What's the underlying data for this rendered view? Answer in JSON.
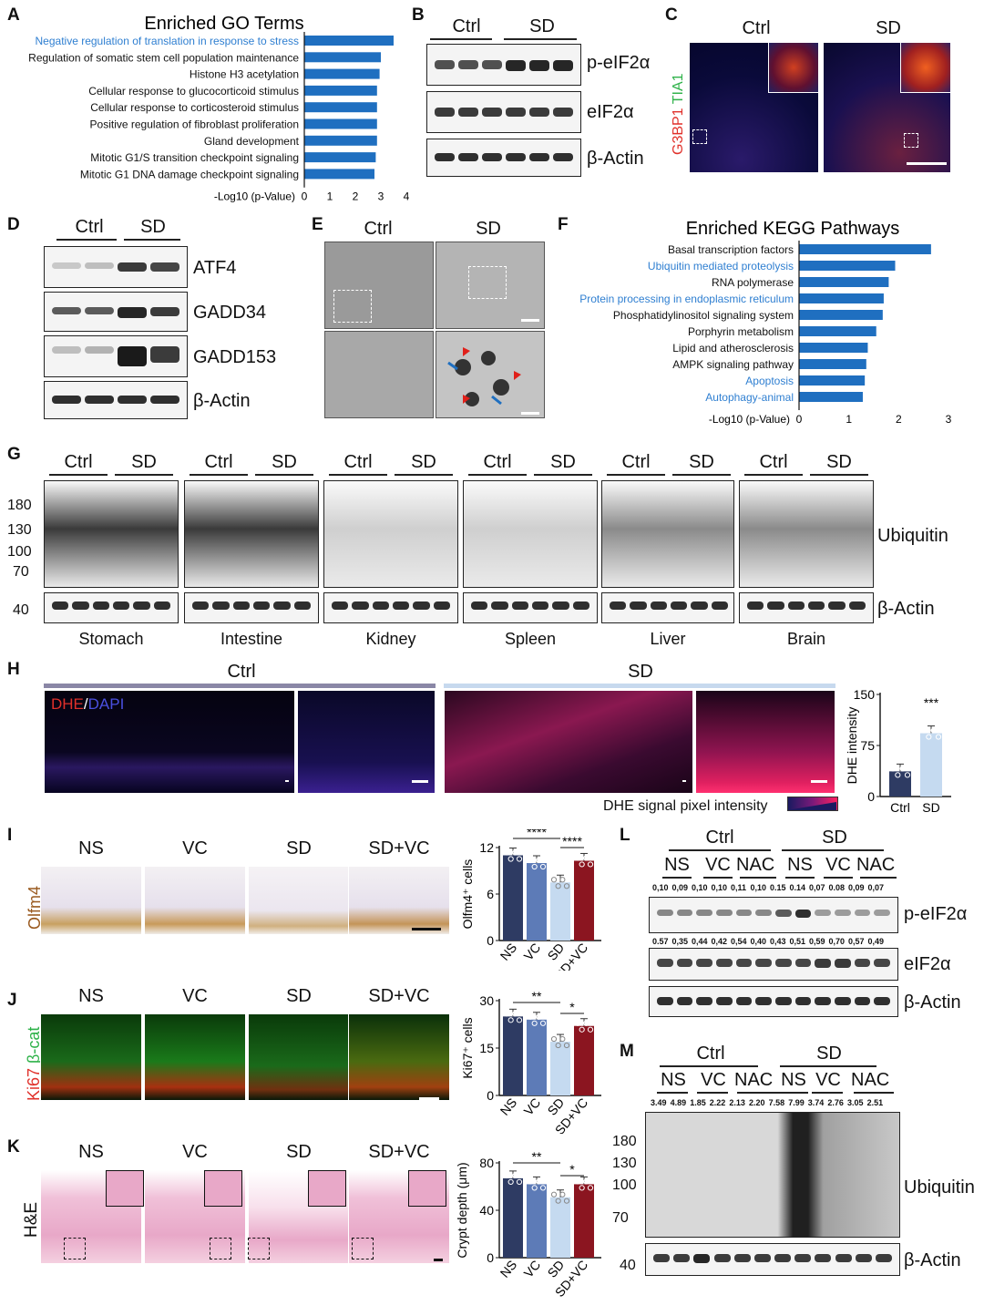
{
  "colors": {
    "bar": "#1f6fc0",
    "highlight": "#2f7fd1",
    "ns": "#2e3b63",
    "vc": "#5d7bb7",
    "sd": "#c5daf0",
    "sdvc": "#8b1520"
  },
  "panelA": {
    "letter": "A",
    "title": "Enriched GO Terms",
    "xlabel": "-Log10 (p-Value)"
  },
  "panelB": {
    "letter": "B",
    "groups": [
      "Ctrl",
      "SD"
    ],
    "rows": [
      "p-eIF2α",
      "eIF2α",
      "β-Actin"
    ]
  },
  "panelC": {
    "letter": "C",
    "groups": [
      "Ctrl",
      "SD"
    ],
    "stain1": "G3BP1",
    "stain2": "TIA1"
  },
  "panelD": {
    "letter": "D",
    "groups": [
      "Ctrl",
      "SD"
    ],
    "rows": [
      "ATF4",
      "GADD34",
      "GADD153",
      "β-Actin"
    ]
  },
  "panelE": {
    "letter": "E",
    "groups": [
      "Ctrl",
      "SD"
    ]
  },
  "panelF": {
    "letter": "F",
    "title": "Enriched KEGG Pathways",
    "xlabel": "-Log10 (p-Value)"
  },
  "panelG": {
    "letter": "G",
    "ctrl": "Ctrl",
    "sd": "SD",
    "tissues": [
      "Stomach",
      "Intestine",
      "Kidney",
      "Spleen",
      "Liver",
      "Brain"
    ],
    "mw": [
      "180",
      "130",
      "100",
      "70"
    ],
    "mw_actin": "40",
    "row1": "Ubiquitin",
    "row2": "β-Actin"
  },
  "panelH": {
    "letter": "H",
    "groups": [
      "Ctrl",
      "SD"
    ],
    "stain1": "DHE",
    "sep": "/",
    "stain2": "DAPI",
    "scale_label": "DHE signal pixel intensity",
    "sig": "***"
  },
  "panelI": {
    "letter": "I",
    "groups": [
      "NS",
      "VC",
      "SD",
      "SD+VC"
    ],
    "stain": "Olfm4",
    "sig1": "****",
    "sig2": "****"
  },
  "panelJ": {
    "letter": "J",
    "groups": [
      "NS",
      "VC",
      "SD",
      "SD+VC"
    ],
    "stain1": "Ki67",
    "stain2": "β-cat",
    "sig1": "**",
    "sig2": "*"
  },
  "panelK": {
    "letter": "K",
    "groups": [
      "NS",
      "VC",
      "SD",
      "SD+VC"
    ],
    "stain": "H&E",
    "sig1": "**",
    "sig2": "*"
  },
  "panelL": {
    "letter": "L",
    "top": [
      "Ctrl",
      "SD"
    ],
    "sub": [
      "NS",
      "VC",
      "NAC",
      "NS",
      "VC",
      "NAC"
    ],
    "q1": [
      "0,10",
      "0,09",
      "0,10",
      "0,10",
      "0,11",
      "0,10",
      "0.15",
      "0.14",
      "0,07",
      "0.08",
      "0,09",
      "0,07"
    ],
    "q2": [
      "0.57",
      "0,35",
      "0,44",
      "0,42",
      "0,54",
      "0,40",
      "0,43",
      "0,51",
      "0,59",
      "0,70",
      "0,57",
      "0,49"
    ],
    "rows": [
      "p-eIF2α",
      "eIF2α",
      "β-Actin"
    ]
  },
  "panelM": {
    "letter": "M",
    "top": [
      "Ctrl",
      "SD"
    ],
    "sub": [
      "NS",
      "VC",
      "NAC",
      "NS",
      "VC",
      "NAC"
    ],
    "q": [
      "3.49",
      "4.89",
      "1.85",
      "2.22",
      "2.13",
      "2.20",
      "7.58",
      "7.99",
      "3.74",
      "2.76",
      "3.05",
      "2.51"
    ],
    "mw": [
      "180",
      "130",
      "100",
      "70"
    ],
    "mw_actin": "40",
    "rows": [
      "Ubiquitin",
      "β-Actin"
    ]
  },
  "chart_data": [
    {
      "type": "bar",
      "id": "A",
      "orientation": "horizontal",
      "title": "Enriched GO Terms",
      "xlabel": "-Log10 (p-Value)",
      "xlim": [
        0,
        4
      ],
      "xticks": [
        "0",
        "1",
        "2",
        "3",
        "4"
      ],
      "categories": [
        "Negative regulation of translation in response to stress",
        "Regulation of somatic stem cell population maintenance",
        "Histone H3 acetylation",
        "Cellular response to glucocorticoid stimulus",
        "Cellular response to corticosteroid stimulus",
        "Positive regulation of fibroblast proliferation",
        "Gland development",
        "Mitotic G1/S transition checkpoint signaling",
        "Mitotic G1 DNA damage checkpoint signaling"
      ],
      "values": [
        3.5,
        3.0,
        2.95,
        2.85,
        2.85,
        2.85,
        2.85,
        2.8,
        2.75
      ],
      "highlighted": [
        0
      ]
    },
    {
      "type": "bar",
      "id": "F",
      "orientation": "horizontal",
      "title": "Enriched KEGG Pathways",
      "xlabel": "-Log10 (p-Value)",
      "xlim": [
        0,
        3
      ],
      "xticks": [
        "0",
        "1",
        "2",
        "3"
      ],
      "categories": [
        "Basal transcription factors",
        "Ubiquitin mediated proteolysis",
        "RNA polymerase",
        "Protein processing in endoplasmic reticulum",
        "Phosphatidylinositol signaling system",
        "Porphyrin metabolism",
        "Lipid and atherosclerosis",
        "AMPK signaling pathway",
        "Apoptosis",
        "Autophagy-animal"
      ],
      "values": [
        2.65,
        1.93,
        1.8,
        1.7,
        1.68,
        1.55,
        1.38,
        1.35,
        1.32,
        1.28
      ],
      "highlighted": [
        1,
        3,
        8,
        9
      ]
    },
    {
      "type": "bar",
      "id": "H",
      "ylabel": "DHE intensity",
      "ylim": [
        0,
        150
      ],
      "yticks": [
        "0",
        "75",
        "150"
      ],
      "categories": [
        "Ctrl",
        "SD"
      ],
      "values": [
        37,
        93
      ]
    },
    {
      "type": "bar",
      "id": "I",
      "ylabel": "Olfm4⁺ cells",
      "ylim": [
        0,
        12
      ],
      "yticks": [
        "0",
        "6",
        "12"
      ],
      "categories": [
        "NS",
        "VC",
        "SD",
        "SD+VC"
      ],
      "values": [
        11.0,
        10.0,
        7.5,
        10.3
      ]
    },
    {
      "type": "bar",
      "id": "J",
      "ylabel": "Ki67⁺ cells",
      "ylim": [
        0,
        30
      ],
      "yticks": [
        "0",
        "15",
        "30"
      ],
      "categories": [
        "NS",
        "VC",
        "SD",
        "SD+VC"
      ],
      "values": [
        25,
        24,
        17,
        22
      ]
    },
    {
      "type": "bar",
      "id": "K",
      "ylabel": "Crypt depth (μm)",
      "ylim": [
        0,
        80
      ],
      "yticks": [
        "0",
        "40",
        "80"
      ],
      "categories": [
        "NS",
        "VC",
        "SD",
        "SD+VC"
      ],
      "values": [
        67,
        62,
        51,
        62
      ]
    }
  ]
}
